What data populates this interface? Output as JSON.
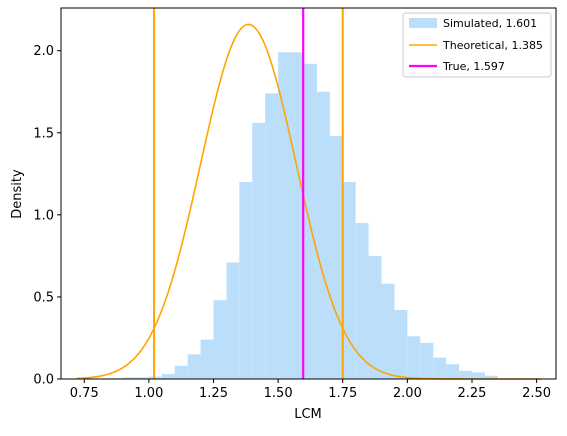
{
  "chart_data": {
    "type": "bar",
    "title": "",
    "xlabel": "LCM",
    "ylabel": "Density",
    "xlim": [
      0.66,
      2.575
    ],
    "ylim": [
      0.0,
      2.26
    ],
    "xticks": [
      "0.75",
      "1.00",
      "1.25",
      "1.50",
      "1.75",
      "2.00",
      "2.25",
      "2.50"
    ],
    "xtick_values": [
      0.75,
      1.0,
      1.25,
      1.5,
      1.75,
      2.0,
      2.25,
      2.5
    ],
    "yticks": [
      "0.0",
      "0.5",
      "1.0",
      "1.5",
      "2.0"
    ],
    "ytick_values": [
      0.0,
      0.5,
      1.0,
      1.5,
      2.0
    ],
    "grid": false,
    "legend_position": "top-right",
    "histogram": {
      "name": "Simulated, 1.601",
      "color": "#bbdefb",
      "bin_edges": [
        0.85,
        0.9,
        0.95,
        1.0,
        1.05,
        1.1,
        1.15,
        1.2,
        1.25,
        1.3,
        1.35,
        1.4,
        1.45,
        1.5,
        1.55,
        1.6,
        1.65,
        1.7,
        1.75,
        1.8,
        1.85,
        1.9,
        1.95,
        2.0,
        2.05,
        2.1,
        2.15,
        2.2,
        2.25,
        2.3,
        2.35
      ],
      "values": [
        0.005,
        0.01,
        0.01,
        0.015,
        0.03,
        0.08,
        0.15,
        0.24,
        0.48,
        0.71,
        1.2,
        1.56,
        1.74,
        1.99,
        1.99,
        1.92,
        1.75,
        1.48,
        1.2,
        0.95,
        0.75,
        0.58,
        0.42,
        0.26,
        0.22,
        0.13,
        0.09,
        0.05,
        0.04,
        0.02
      ]
    },
    "theoretical_curve": {
      "name": "Theoretical, 1.385",
      "color": "#ffa500",
      "x_start": 0.72,
      "x_end": 2.52,
      "mode": 1.385,
      "peak_density": 2.16,
      "sigma_left": 0.185,
      "sigma_right": 0.185
    },
    "vertical_lines": [
      {
        "name": "True, 1.597",
        "color": "#ff00ff",
        "x": 1.597,
        "in_legend": true
      },
      {
        "name": "",
        "color": "#ffa500",
        "x": 1.02,
        "in_legend": false
      },
      {
        "name": "",
        "color": "#ffa500",
        "x": 1.75,
        "in_legend": false
      }
    ]
  }
}
